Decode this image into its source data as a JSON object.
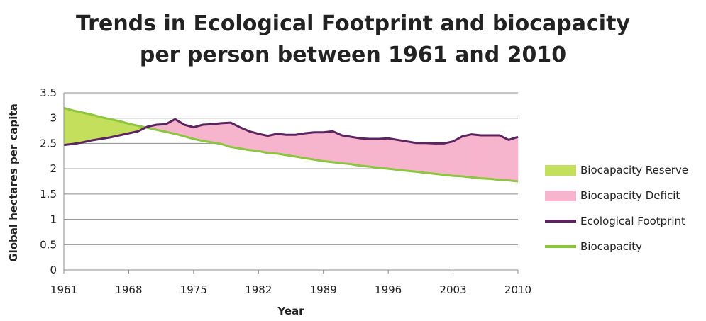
{
  "chart_data": {
    "type": "area",
    "title_lines": [
      "Trends in Ecological Footprint and biocapacity",
      "per person between 1961 and 2010"
    ],
    "xlabel": "Year",
    "ylabel": "Global hectares per capita",
    "xlim": [
      1961,
      2010
    ],
    "ylim": [
      0,
      3.5
    ],
    "x_ticks": [
      1961,
      1968,
      1975,
      1982,
      1989,
      1996,
      2003,
      2010
    ],
    "y_ticks": [
      "0",
      "0.5",
      "1",
      "1.5",
      "2",
      "2.5",
      "3",
      "3.5"
    ],
    "grid": true,
    "legend_position": "right",
    "x": [
      1961,
      1962,
      1963,
      1964,
      1965,
      1966,
      1967,
      1968,
      1969,
      1970,
      1971,
      1972,
      1973,
      1974,
      1975,
      1976,
      1977,
      1978,
      1979,
      1980,
      1981,
      1982,
      1983,
      1984,
      1985,
      1986,
      1987,
      1988,
      1989,
      1990,
      1991,
      1992,
      1993,
      1994,
      1995,
      1996,
      1997,
      1998,
      1999,
      2000,
      2001,
      2002,
      2003,
      2004,
      2005,
      2006,
      2007,
      2008,
      2009,
      2010
    ],
    "series": [
      {
        "name": "Ecological Footprint",
        "color": "#5b2460",
        "values": [
          2.47,
          2.49,
          2.52,
          2.56,
          2.59,
          2.62,
          2.66,
          2.7,
          2.74,
          2.83,
          2.87,
          2.88,
          2.98,
          2.87,
          2.82,
          2.87,
          2.88,
          2.9,
          2.91,
          2.82,
          2.74,
          2.69,
          2.65,
          2.69,
          2.67,
          2.67,
          2.7,
          2.72,
          2.72,
          2.74,
          2.66,
          2.63,
          2.6,
          2.59,
          2.59,
          2.6,
          2.57,
          2.54,
          2.51,
          2.51,
          2.5,
          2.5,
          2.54,
          2.64,
          2.68,
          2.66,
          2.66,
          2.66,
          2.57,
          2.63
        ]
      },
      {
        "name": "Biocapacity",
        "color": "#8cc63f",
        "values": [
          3.2,
          3.15,
          3.11,
          3.07,
          3.02,
          2.98,
          2.94,
          2.89,
          2.85,
          2.81,
          2.77,
          2.73,
          2.69,
          2.64,
          2.59,
          2.55,
          2.52,
          2.49,
          2.43,
          2.4,
          2.37,
          2.35,
          2.31,
          2.3,
          2.27,
          2.24,
          2.21,
          2.18,
          2.15,
          2.13,
          2.11,
          2.09,
          2.06,
          2.04,
          2.02,
          2.0,
          1.98,
          1.96,
          1.94,
          1.92,
          1.9,
          1.88,
          1.86,
          1.85,
          1.83,
          1.81,
          1.8,
          1.78,
          1.77,
          1.75
        ]
      }
    ],
    "fills": [
      {
        "name": "Biocapacity Reserve",
        "color": "#c4df5c"
      },
      {
        "name": "Biocapacity Deficit",
        "color": "#f7b5cd"
      }
    ]
  }
}
